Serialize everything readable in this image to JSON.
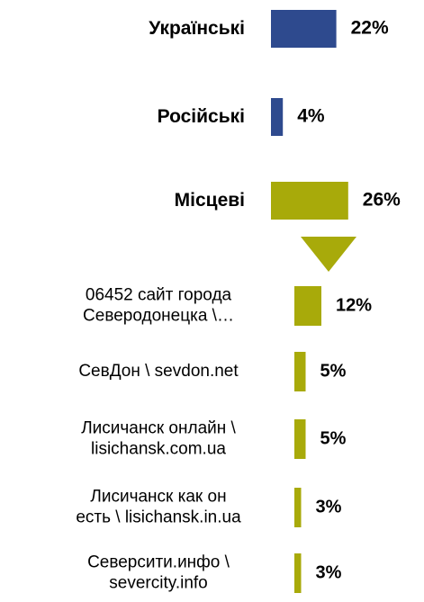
{
  "chart_data": [
    {
      "type": "bar",
      "orientation": "horizontal",
      "categories": [
        "Українські",
        "Російські",
        "Місцеві"
      ],
      "values": [
        22,
        4,
        26
      ],
      "value_labels": [
        "22%",
        "4%",
        "26%"
      ],
      "colors": [
        "#2e4a8e",
        "#2e4a8e",
        "#a8aa0a"
      ]
    },
    {
      "type": "bar",
      "orientation": "horizontal",
      "categories": [
        "06452 сайт города\nСеверодонецка \\…",
        "СевДон \\ sevdon.net",
        "Лисичанск онлайн \\\nlisichansk.com.ua",
        "Лисичанск как он\nесть \\ lisichansk.in.ua",
        "Северсити.инфо \\\nsevercity.info"
      ],
      "values": [
        12,
        5,
        5,
        3,
        3
      ],
      "value_labels": [
        "12%",
        "5%",
        "5%",
        "3%",
        "3%"
      ],
      "color": "#a8aa0a"
    }
  ]
}
